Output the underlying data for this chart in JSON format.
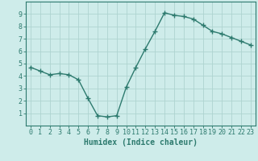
{
  "x": [
    0,
    1,
    2,
    3,
    4,
    5,
    6,
    7,
    8,
    9,
    10,
    11,
    12,
    13,
    14,
    15,
    16,
    17,
    18,
    19,
    20,
    21,
    22,
    23
  ],
  "y": [
    4.7,
    4.4,
    4.1,
    4.2,
    4.1,
    3.7,
    2.2,
    0.8,
    0.7,
    0.8,
    3.1,
    4.7,
    6.2,
    7.6,
    9.1,
    8.9,
    8.8,
    8.6,
    8.1,
    7.6,
    7.4,
    7.1,
    6.8,
    6.5
  ],
  "line_color": "#2d7a6e",
  "marker": "+",
  "marker_size": 4,
  "marker_edge_width": 1.0,
  "background_color": "#ceecea",
  "grid_color": "#aed4d0",
  "xlabel": "Humidex (Indice chaleur)",
  "xlim": [
    -0.5,
    23.5
  ],
  "ylim": [
    0,
    10
  ],
  "xticks": [
    0,
    1,
    2,
    3,
    4,
    5,
    6,
    7,
    8,
    9,
    10,
    11,
    12,
    13,
    14,
    15,
    16,
    17,
    18,
    19,
    20,
    21,
    22,
    23
  ],
  "yticks": [
    1,
    2,
    3,
    4,
    5,
    6,
    7,
    8,
    9
  ],
  "xlabel_fontsize": 7,
  "tick_fontsize": 6,
  "line_width": 1.0,
  "spine_color": "#2d7a6e"
}
